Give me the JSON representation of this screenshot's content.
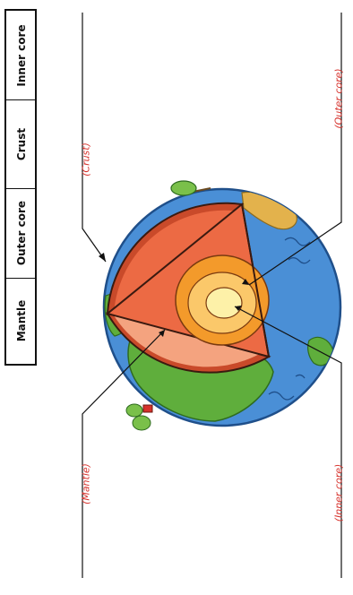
{
  "word_bank": [
    "Mantle",
    "Outer core",
    "Crust",
    "Inner core"
  ],
  "labels": {
    "crust": "(Crust)",
    "outer_core": "(Outer core)",
    "mantle": "(Mantle)",
    "inner_core": "(Inner core)"
  },
  "colors": {
    "ocean": "#4a8fd6",
    "land": "#5fae3c",
    "crust": "#c94a2a",
    "mantle": "#ec6a44",
    "mantle_light": "#f4a37f",
    "outer_core": "#f39a2b",
    "outer_core_light": "#fbc86a",
    "inner_core": "#fdf1a8",
    "label_red": "#d6322c"
  }
}
